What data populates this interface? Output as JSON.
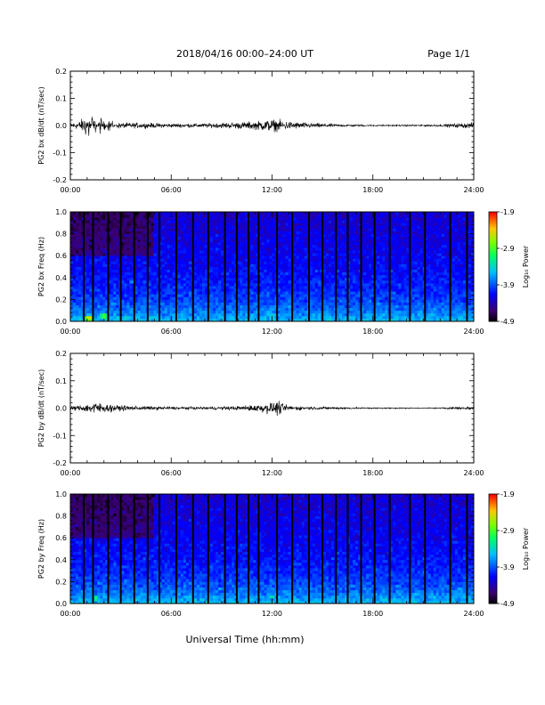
{
  "header": {
    "title": "2018/04/16  00:00–24:00 UT",
    "page": "Page 1/1"
  },
  "chart_data": [
    {
      "type": "line",
      "ylabel": "PG2 bx dB/dt (nT/sec)",
      "xlabel": "",
      "xlim": [
        "00:00",
        "24:00"
      ],
      "ylim": [
        -0.2,
        0.2
      ],
      "x_ticks": [
        "00:00",
        "06:00",
        "12:00",
        "18:00",
        "24:00"
      ],
      "y_ticks": [
        "-0.2",
        "-0.1",
        "0.0",
        "0.1",
        "0.2"
      ],
      "series": [
        {
          "x": [
            0.0,
            0.5,
            0.8,
            1.0,
            1.1,
            1.2,
            1.3,
            1.5,
            1.8,
            2.0,
            2.3,
            2.8,
            4.0,
            6.0,
            8.0,
            10.0,
            11.0,
            11.5,
            12.0,
            12.5,
            13.0,
            14.0,
            16.0,
            18.0,
            20.0,
            22.0,
            23.5,
            24.0
          ],
          "y": [
            0.02,
            0.03,
            0.06,
            0.1,
            -0.15,
            0.07,
            -0.12,
            0.06,
            -0.08,
            0.05,
            -0.06,
            0.02,
            0.02,
            0.015,
            0.015,
            0.025,
            0.03,
            0.04,
            0.045,
            0.04,
            0.03,
            0.02,
            0.01,
            0.005,
            0.006,
            0.008,
            0.02,
            0.02
          ]
        }
      ],
      "grid": false
    },
    {
      "type": "heatmap",
      "ylabel": "PG2 bx Freq (Hz)",
      "xlabel": "",
      "xlim": [
        "00:00",
        "24:00"
      ],
      "ylim": [
        0.0,
        1.0
      ],
      "x_ticks": [
        "00:00",
        "06:00",
        "12:00",
        "18:00",
        "24:00"
      ],
      "y_ticks": [
        "0.0",
        "0.2",
        "0.4",
        "0.6",
        "0.8",
        "1.0"
      ],
      "colorbar": {
        "label": "Log₁₀ Power",
        "ticks": [
          "-1.9",
          "-2.9",
          "-3.9",
          "-4.9"
        ],
        "range": [
          -4.9,
          -1.9
        ]
      },
      "gap_hours": [
        0.8,
        1.35,
        2.25,
        3.0,
        3.8,
        4.6,
        5.3,
        6.3,
        7.3,
        8.2,
        9.2,
        9.9,
        10.6,
        11.2,
        12.3,
        13.2,
        14.2,
        15.0,
        15.8,
        16.5,
        17.3,
        18.1,
        19.0,
        20.2,
        21.1,
        22.6,
        23.6
      ],
      "activity": [
        {
          "t": 1.1,
          "f": 0.03,
          "level": -2.3
        },
        {
          "t": 2.0,
          "f": 0.05,
          "level": -2.7
        },
        {
          "t": 3.7,
          "f": 0.37,
          "level": -3.5
        },
        {
          "t": 12.0,
          "f": 0.05,
          "level": -3.2
        }
      ]
    },
    {
      "type": "line",
      "ylabel": "PG2 by dB/dt (nT/sec)",
      "xlabel": "",
      "xlim": [
        "00:00",
        "24:00"
      ],
      "ylim": [
        -0.2,
        0.2
      ],
      "x_ticks": [
        "00:00",
        "06:00",
        "12:00",
        "18:00",
        "24:00"
      ],
      "y_ticks": [
        "-0.2",
        "-0.1",
        "0.0",
        "0.1",
        "0.2"
      ],
      "series": [
        {
          "x": [
            0.0,
            0.5,
            1.0,
            1.5,
            2.0,
            3.0,
            4.0,
            6.0,
            8.0,
            10.0,
            11.0,
            11.5,
            12.0,
            12.3,
            12.6,
            13.0,
            14.0,
            16.0,
            18.0,
            20.0,
            22.0,
            23.3,
            24.0
          ],
          "y": [
            0.015,
            0.02,
            0.03,
            0.05,
            0.03,
            0.02,
            0.015,
            0.012,
            0.01,
            0.015,
            0.025,
            0.035,
            0.04,
            0.055,
            0.035,
            0.02,
            0.012,
            0.008,
            0.005,
            0.004,
            0.004,
            0.012,
            0.012
          ]
        }
      ],
      "grid": false
    },
    {
      "type": "heatmap",
      "ylabel": "PG2 by Freq (Hz)",
      "xlabel": "Universal Time (hh:mm)",
      "xlim": [
        "00:00",
        "24:00"
      ],
      "ylim": [
        0.0,
        1.0
      ],
      "x_ticks": [
        "00:00",
        "06:00",
        "12:00",
        "18:00",
        "24:00"
      ],
      "y_ticks": [
        "0.0",
        "0.2",
        "0.4",
        "0.6",
        "0.8",
        "1.0"
      ],
      "colorbar": {
        "label": "Log₁₀ Power",
        "ticks": [
          "-1.9",
          "-2.9",
          "-3.9",
          "-4.9"
        ],
        "range": [
          -4.9,
          -1.9
        ]
      },
      "gap_hours": [
        0.8,
        1.35,
        2.25,
        3.0,
        3.8,
        4.6,
        5.3,
        6.3,
        7.3,
        8.2,
        9.2,
        9.9,
        10.6,
        11.2,
        12.3,
        13.2,
        14.2,
        15.0,
        15.8,
        16.5,
        17.3,
        18.1,
        19.0,
        20.2,
        21.1,
        22.6,
        23.6
      ],
      "activity": [
        {
          "t": 1.5,
          "f": 0.05,
          "level": -3.0
        },
        {
          "t": 12.0,
          "f": 0.06,
          "level": -3.2
        }
      ]
    }
  ]
}
